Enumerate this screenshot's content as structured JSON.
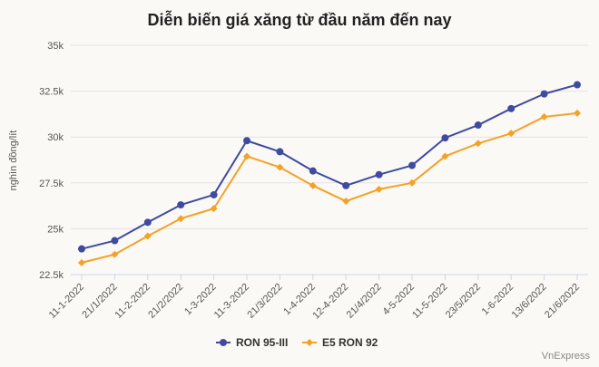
{
  "chart_data": {
    "type": "line",
    "title": "Diễn biến giá xăng từ đầu năm đến nay",
    "xlabel": "",
    "ylabel": "nghìn đồng/lít",
    "ylim": [
      22500,
      35000
    ],
    "yticks": [
      22500,
      25000,
      27500,
      30000,
      32500,
      35000
    ],
    "ytick_labels": [
      "22.5k",
      "25k",
      "27.5k",
      "30k",
      "32.5k",
      "35k"
    ],
    "categories": [
      "11-1-2022",
      "21/1/2022",
      "11-2-2022",
      "21/2/2022",
      "1-3-2022",
      "11-3-2022",
      "21/3/2022",
      "1-4-2022",
      "12-4-2022",
      "21/4/2022",
      "4-5-2022",
      "11-5-2022",
      "23/5/2022",
      "1-6-2022",
      "13/6/2022",
      "21/6/2022"
    ],
    "series": [
      {
        "name": "RON 95-III",
        "color": "#3f4aa0",
        "marker": "circle",
        "values": [
          23900,
          24350,
          25350,
          26300,
          26850,
          29800,
          29200,
          28150,
          27350,
          27950,
          28450,
          29950,
          30650,
          31550,
          32350,
          32850
        ]
      },
      {
        "name": "E5 RON 92",
        "color": "#f5a126",
        "marker": "diamond",
        "values": [
          23150,
          23600,
          24600,
          25550,
          26100,
          28950,
          28350,
          27350,
          26500,
          27150,
          27500,
          28950,
          29650,
          30200,
          31100,
          31300
        ]
      }
    ],
    "grid": true,
    "legend": "bottom"
  },
  "credit": "VnExpress"
}
